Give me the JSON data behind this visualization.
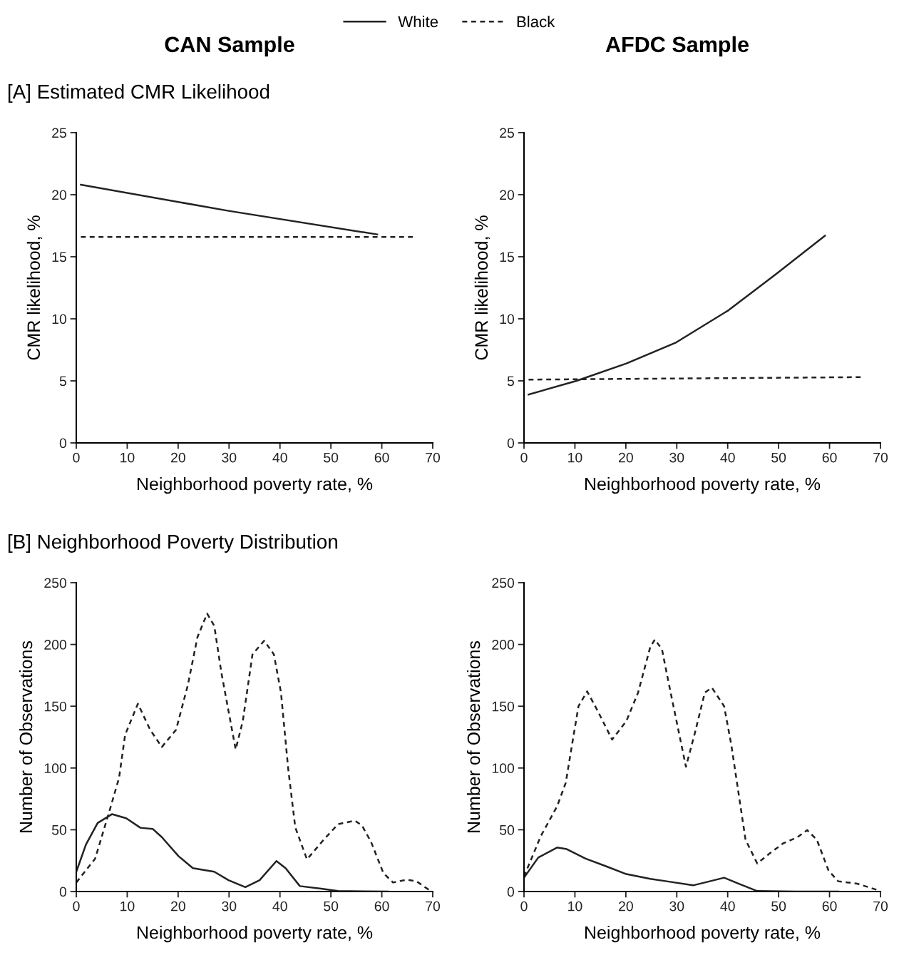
{
  "chart_data": [
    {
      "type": "line",
      "title": "CAN Sample",
      "subtitle": "[A] Estimated CMR Likelihood",
      "xlabel": "Neighborhood poverty rate, %",
      "ylabel": "CMR likelihood, %",
      "xlim": [
        0,
        70
      ],
      "xticks": [
        0,
        10,
        20,
        30,
        40,
        50,
        60,
        70
      ],
      "ylim": [
        0,
        25
      ],
      "yticks": [
        0,
        5,
        10,
        15,
        20,
        25
      ],
      "legend": "top",
      "grid": false,
      "marker": "none",
      "series": [
        {
          "name": "White",
          "color": "#222222",
          "line_style": "solid",
          "x": [
            0.9,
            29.9,
            59.1
          ],
          "values": [
            20.8,
            18.7,
            16.8
          ]
        },
        {
          "name": "Black",
          "color": "#222222",
          "line_style": "dashed",
          "x": [
            0.9,
            66.1
          ],
          "values": [
            16.6,
            16.6
          ]
        }
      ]
    },
    {
      "type": "line",
      "title": "AFDC Sample",
      "xlabel": "Neighborhood poverty rate, %",
      "ylabel": "CMR likelihood, %",
      "xlim": [
        0,
        70
      ],
      "xticks": [
        0,
        10,
        20,
        30,
        40,
        50,
        60,
        70
      ],
      "ylim": [
        0,
        25
      ],
      "yticks": [
        0,
        5,
        10,
        15,
        20,
        25
      ],
      "grid": false,
      "marker": "none",
      "series": [
        {
          "name": "White",
          "color": "#222222",
          "line_style": "solid",
          "x": [
            0.9,
            10.3,
            20.1,
            29.9,
            40.2,
            49.5,
            59.1
          ],
          "values": [
            3.9,
            5.0,
            6.4,
            8.1,
            10.7,
            13.6,
            16.7
          ]
        },
        {
          "name": "Black",
          "color": "#222222",
          "line_style": "dashed",
          "x": [
            0.9,
            66.1
          ],
          "values": [
            5.1,
            5.3
          ]
        }
      ]
    },
    {
      "type": "line",
      "subtitle": "[B] Neighborhood Poverty Distribution",
      "xlabel": "Neighborhood poverty rate, %",
      "ylabel": "Number of Observations",
      "xlim": [
        0,
        70
      ],
      "xticks": [
        0,
        10,
        20,
        30,
        40,
        50,
        60,
        70
      ],
      "ylim": [
        0,
        250
      ],
      "yticks": [
        0,
        50,
        100,
        150,
        200,
        250
      ],
      "grid": false,
      "marker": "none",
      "series": [
        {
          "name": "White",
          "color": "#222222",
          "line_style": "solid",
          "x": [
            0,
            1.9,
            4.2,
            7.0,
            9.8,
            12.6,
            15.0,
            16.8,
            20.1,
            22.9,
            27.1,
            29.9,
            33.2,
            36.0,
            39.3,
            41.1,
            43.9,
            48.1,
            51.4,
            61.2
          ],
          "values": [
            16,
            38,
            55.5,
            62.6,
            59.3,
            51.6,
            50.7,
            44,
            28.5,
            18.9,
            16,
            9.2,
            3.5,
            9.2,
            24.7,
            18.9,
            4.4,
            2.3,
            0.4,
            0
          ]
        },
        {
          "name": "Black",
          "color": "#222222",
          "line_style": "dashed",
          "x": [
            0,
            3.7,
            6.5,
            8.4,
            9.6,
            12.1,
            14.5,
            16.8,
            19.6,
            21.9,
            23.8,
            25.7,
            27.1,
            28.5,
            31.3,
            32.7,
            34.6,
            36.9,
            38.8,
            40.2,
            41.6,
            43.0,
            45.3,
            48.6,
            51.4,
            54.7,
            56.1,
            57.9,
            60.3,
            62.2,
            64.9,
            66.8,
            69.2
          ],
          "values": [
            7.3,
            26.6,
            65,
            92,
            127,
            152,
            131,
            117,
            131,
            167,
            206,
            225,
            215,
            177,
            115,
            138,
            192,
            203,
            192,
            161,
            100,
            52,
            26,
            42,
            54.5,
            57.4,
            53.5,
            40,
            15,
            7.3,
            9.6,
            8.3,
            1.5
          ]
        }
      ]
    },
    {
      "type": "line",
      "xlabel": "Neighborhood poverty rate, %",
      "ylabel": "Number of Observations",
      "xlim": [
        0,
        70
      ],
      "xticks": [
        0,
        10,
        20,
        30,
        40,
        50,
        60,
        70
      ],
      "ylim": [
        0,
        250
      ],
      "yticks": [
        0,
        50,
        100,
        150,
        200,
        250
      ],
      "grid": false,
      "marker": "none",
      "series": [
        {
          "name": "White",
          "color": "#222222",
          "line_style": "solid",
          "x": [
            0,
            2.8,
            6.5,
            8.4,
            12.1,
            15.9,
            20.1,
            24.8,
            28.0,
            33.2,
            35.5,
            39.3,
            42.1,
            45.8,
            53.3,
            61.7
          ],
          "values": [
            11.2,
            27.5,
            35.6,
            34.3,
            26.6,
            20.8,
            14.1,
            10.2,
            8.3,
            5.0,
            7.3,
            11.2,
            6.4,
            0.4,
            0,
            0
          ]
        },
        {
          "name": "Black",
          "color": "#222222",
          "line_style": "dashed",
          "x": [
            0,
            3.3,
            6.5,
            8.2,
            9.6,
            10.7,
            12.4,
            14.5,
            17.3,
            20.1,
            22.4,
            24.8,
            25.7,
            27.1,
            28.5,
            31.8,
            33.6,
            35.5,
            36.9,
            39.3,
            40.7,
            42.1,
            43.5,
            45.8,
            48.1,
            50.9,
            53.7,
            55.6,
            57.5,
            59.8,
            61.7,
            65.4,
            69.2
          ],
          "values": [
            12.1,
            44.9,
            69,
            88,
            123,
            150,
            162,
            146,
            123,
            138,
            161,
            198,
            204,
            196,
            167,
            101,
            129,
            161,
            165,
            150,
            119,
            80.5,
            42,
            22.7,
            30.4,
            39,
            44,
            49.7,
            42,
            17,
            8.3,
            6.4,
            1.5
          ]
        }
      ]
    }
  ]
}
